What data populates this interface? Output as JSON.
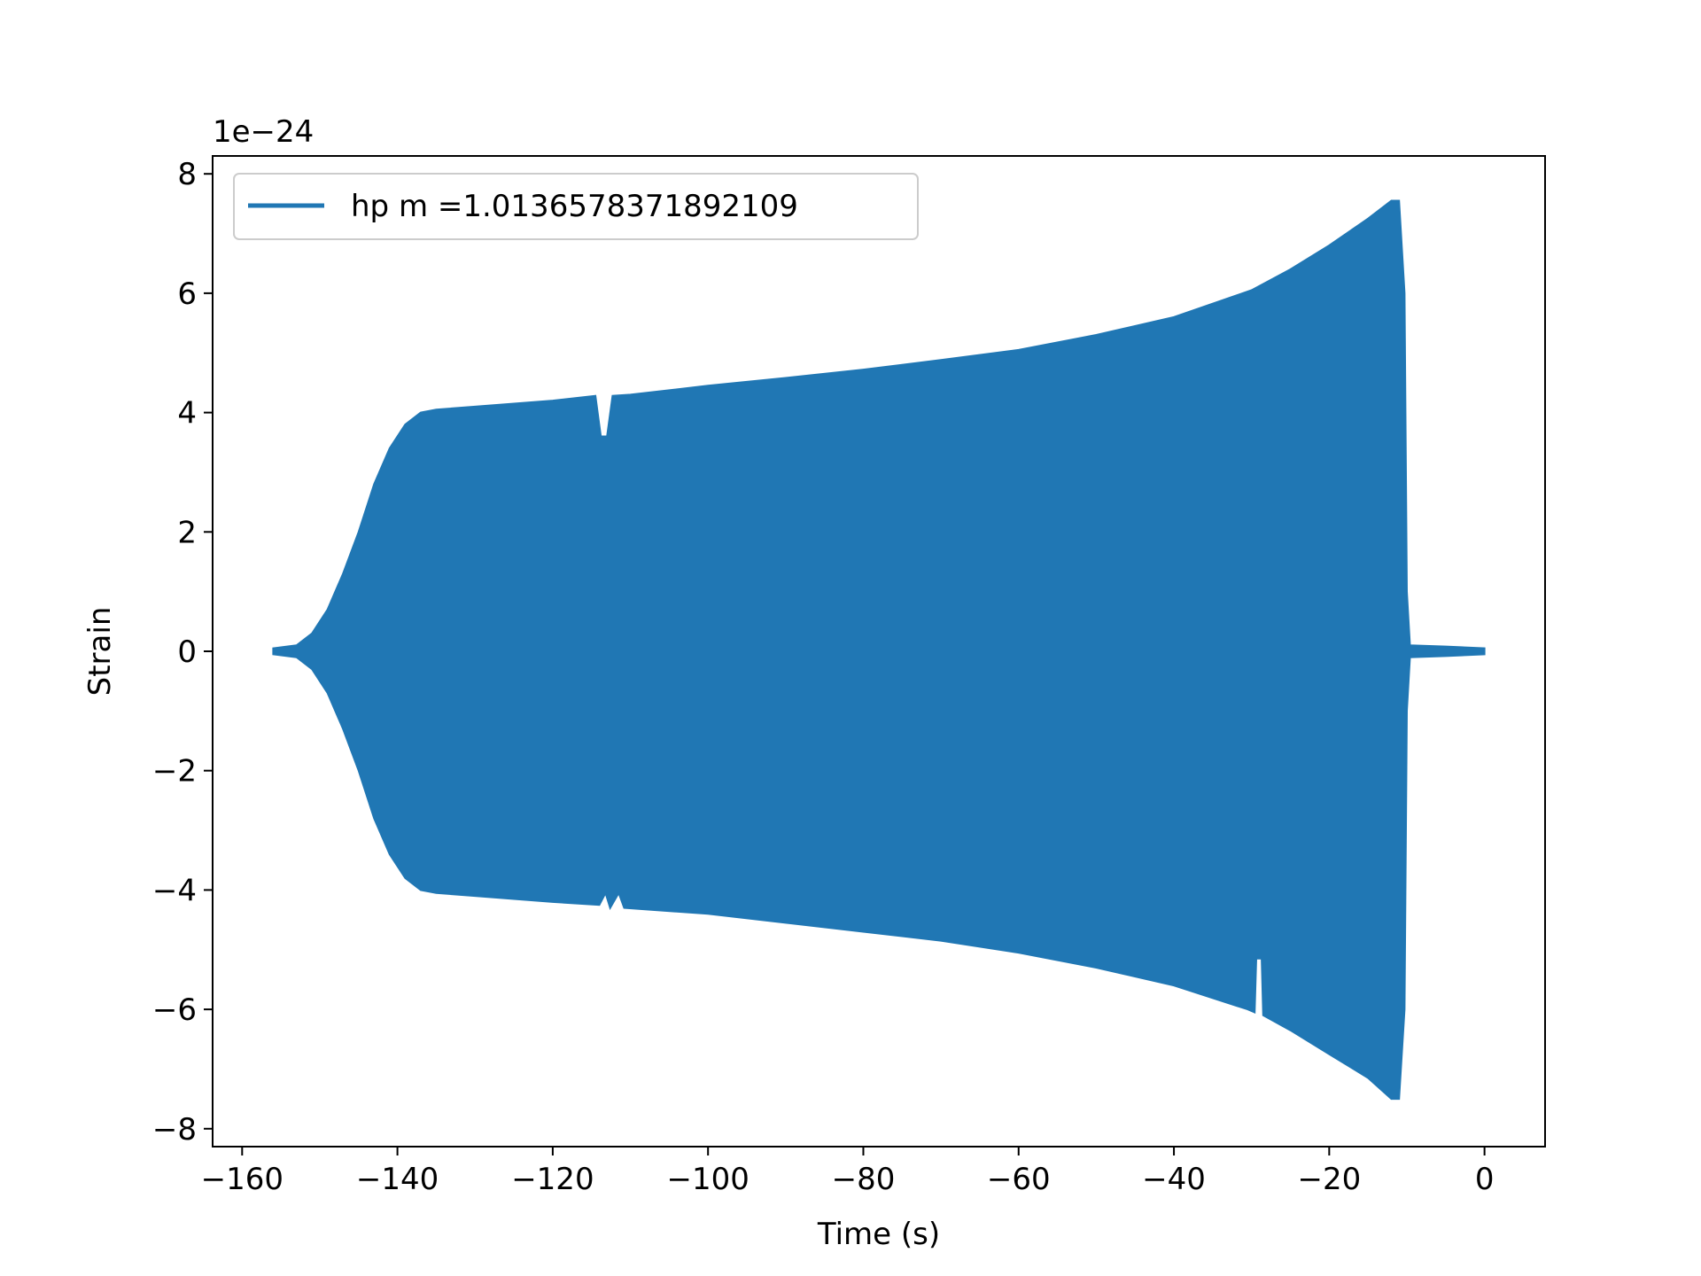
{
  "chart_data": {
    "type": "line",
    "title": "",
    "xlabel": "Time (s)",
    "ylabel": "Strain",
    "y_offset_text": "1e−24",
    "xlim": [
      -160,
      0
    ],
    "ylim": [
      -8.3,
      8.3
    ],
    "x_ticks": [
      -160,
      -140,
      -120,
      -100,
      -80,
      -60,
      -40,
      -20,
      0
    ],
    "x_tick_labels": [
      "−160",
      "−140",
      "−120",
      "−100",
      "−80",
      "−60",
      "−40",
      "−20",
      "0"
    ],
    "y_ticks": [
      -8,
      -6,
      -4,
      -2,
      0,
      2,
      4,
      6,
      8
    ],
    "y_tick_labels": [
      "−8",
      "−6",
      "−4",
      "−2",
      "0",
      "2",
      "4",
      "6",
      "8"
    ],
    "grid": false,
    "legend_position": "top-left",
    "series": [
      {
        "name": "hp m =1.0136578371892109",
        "color": "#2077b4",
        "style": "dense-oscillation envelope",
        "upper_envelope": [
          [
            -156,
            0.05
          ],
          [
            -153,
            0.1
          ],
          [
            -151,
            0.3
          ],
          [
            -149,
            0.7
          ],
          [
            -147,
            1.3
          ],
          [
            -145,
            2.0
          ],
          [
            -143,
            2.8
          ],
          [
            -141,
            3.4
          ],
          [
            -139,
            3.8
          ],
          [
            -137,
            4.0
          ],
          [
            -135,
            4.05
          ],
          [
            -130,
            4.1
          ],
          [
            -120,
            4.2
          ],
          [
            -114.5,
            4.28
          ],
          [
            -113.8,
            3.6
          ],
          [
            -113,
            3.6
          ],
          [
            -112.3,
            4.28
          ],
          [
            -110,
            4.3
          ],
          [
            -100,
            4.45
          ],
          [
            -90,
            4.58
          ],
          [
            -80,
            4.72
          ],
          [
            -70,
            4.88
          ],
          [
            -60,
            5.05
          ],
          [
            -50,
            5.3
          ],
          [
            -40,
            5.6
          ],
          [
            -30,
            6.05
          ],
          [
            -25,
            6.4
          ],
          [
            -20,
            6.8
          ],
          [
            -15,
            7.25
          ],
          [
            -12,
            7.55
          ],
          [
            -11,
            7.55
          ],
          [
            -10.3,
            6.0
          ],
          [
            -10,
            1.0
          ],
          [
            -9.6,
            0.1
          ],
          [
            -5,
            0.08
          ],
          [
            0,
            0.05
          ]
        ],
        "lower_envelope": [
          [
            -156,
            -0.05
          ],
          [
            -153,
            -0.1
          ],
          [
            -151,
            -0.3
          ],
          [
            -149,
            -0.7
          ],
          [
            -147,
            -1.3
          ],
          [
            -145,
            -2.0
          ],
          [
            -143,
            -2.8
          ],
          [
            -141,
            -3.4
          ],
          [
            -139,
            -3.8
          ],
          [
            -137,
            -4.0
          ],
          [
            -135,
            -4.05
          ],
          [
            -130,
            -4.1
          ],
          [
            -120,
            -4.2
          ],
          [
            -114,
            -4.25
          ],
          [
            -113.2,
            -4.05
          ],
          [
            -112.6,
            -4.3
          ],
          [
            -111.5,
            -4.05
          ],
          [
            -110.8,
            -4.3
          ],
          [
            -100,
            -4.4
          ],
          [
            -90,
            -4.55
          ],
          [
            -80,
            -4.7
          ],
          [
            -70,
            -4.85
          ],
          [
            -60,
            -5.05
          ],
          [
            -50,
            -5.3
          ],
          [
            -40,
            -5.6
          ],
          [
            -30.5,
            -6.0
          ],
          [
            -29.6,
            -6.05
          ],
          [
            -29.4,
            -5.15
          ],
          [
            -28.7,
            -5.15
          ],
          [
            -28.5,
            -6.1
          ],
          [
            -25,
            -6.35
          ],
          [
            -20,
            -6.75
          ],
          [
            -15,
            -7.15
          ],
          [
            -12,
            -7.5
          ],
          [
            -11,
            -7.5
          ],
          [
            -10.3,
            -6.0
          ],
          [
            -10,
            -1.0
          ],
          [
            -9.6,
            -0.1
          ],
          [
            -5,
            -0.08
          ],
          [
            0,
            -0.05
          ]
        ]
      }
    ]
  }
}
